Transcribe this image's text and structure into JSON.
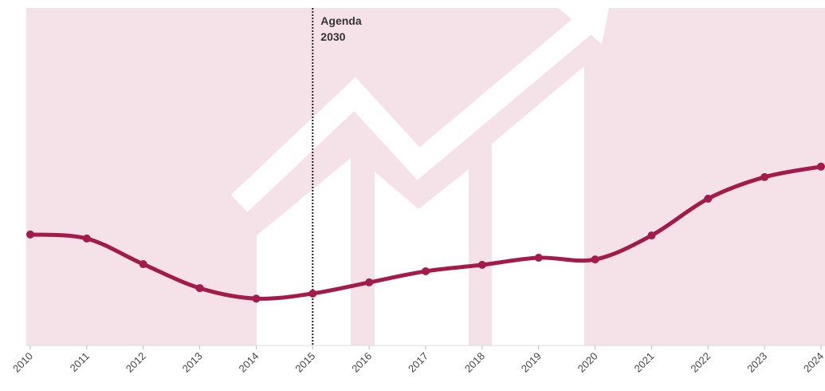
{
  "chart_data": {
    "type": "line",
    "x": [
      2010,
      2011,
      2012,
      2013,
      2014,
      2015,
      2016,
      2017,
      2018,
      2019,
      2020,
      2021,
      2022,
      2023,
      2024
    ],
    "series": [
      {
        "color": "#a31b4a",
        "values": [
          32.9,
          31.7,
          24.1,
          17.0,
          13.9,
          15.4,
          18.7,
          22.0,
          23.9,
          26.0,
          25.5,
          32.6,
          43.5,
          49.9,
          53.0
        ]
      }
    ],
    "xlim": [
      2010,
      2024
    ],
    "xticks": [
      2010,
      2011,
      2012,
      2013,
      2014,
      2015,
      2016,
      2017,
      2018,
      2019,
      2020,
      2021,
      2022,
      2023,
      2024
    ],
    "ylim": [
      0,
      100
    ],
    "annotations": [
      {
        "x": 2015,
        "lines": [
          "Agenda",
          "2030"
        ]
      }
    ]
  }
}
